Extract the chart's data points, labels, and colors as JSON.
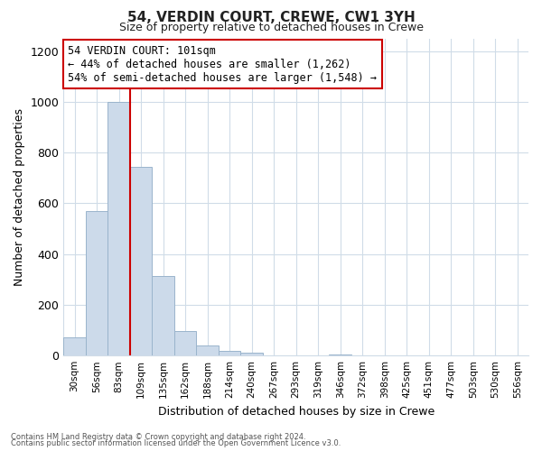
{
  "title": "54, VERDIN COURT, CREWE, CW1 3YH",
  "subtitle": "Size of property relative to detached houses in Crewe",
  "xlabel": "Distribution of detached houses by size in Crewe",
  "ylabel": "Number of detached properties",
  "footnote1": "Contains HM Land Registry data © Crown copyright and database right 2024.",
  "footnote2": "Contains public sector information licensed under the Open Government Licence v3.0.",
  "bin_labels": [
    "30sqm",
    "56sqm",
    "83sqm",
    "109sqm",
    "135sqm",
    "162sqm",
    "188sqm",
    "214sqm",
    "240sqm",
    "267sqm",
    "293sqm",
    "319sqm",
    "346sqm",
    "372sqm",
    "398sqm",
    "425sqm",
    "451sqm",
    "477sqm",
    "503sqm",
    "530sqm",
    "556sqm"
  ],
  "bar_values": [
    70,
    570,
    1000,
    745,
    315,
    95,
    40,
    20,
    10,
    0,
    0,
    0,
    5,
    0,
    0,
    0,
    0,
    0,
    0,
    0,
    0
  ],
  "bar_color": "#ccdaea",
  "bar_edge_color": "#9ab4cc",
  "vline_color": "#cc0000",
  "vline_bin_index": 3,
  "annotation_title": "54 VERDIN COURT: 101sqm",
  "annotation_line1": "← 44% of detached houses are smaller (1,262)",
  "annotation_line2": "54% of semi-detached houses are larger (1,548) →",
  "annotation_box_color": "#ffffff",
  "annotation_box_edge": "#cc0000",
  "ylim": [
    0,
    1250
  ],
  "yticks": [
    0,
    200,
    400,
    600,
    800,
    1000,
    1200
  ],
  "grid_color": "#d0dce8",
  "bg_color": "#ffffff",
  "figsize": [
    6.0,
    5.0
  ],
  "dpi": 100
}
